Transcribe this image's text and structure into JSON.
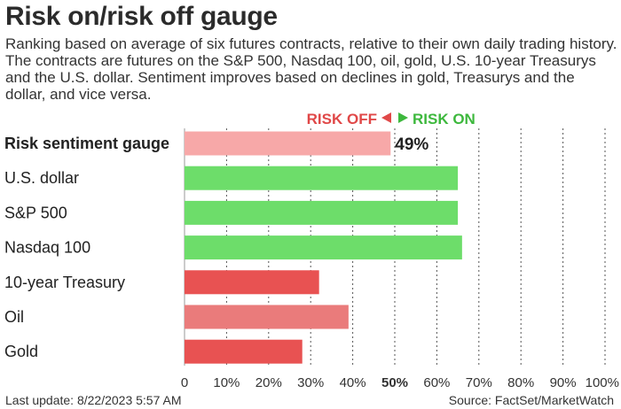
{
  "title": "Risk on/risk off gauge",
  "subtitle": "Ranking based on average of six futures contracts, relative to their own daily trading history. The contracts are futures on the S&P 500, Nasdaq 100, oil, gold, U.S. 10-year Treasurys and the U.S. dollar. Sentiment improves based on declines in gold, Treasurys and the dollar, and vice versa.",
  "footer": {
    "last_update": "Last update: 8/22/2023 5:57 AM",
    "source": "Source: FactSet/MarketWatch"
  },
  "chart_data": {
    "type": "bar",
    "orientation": "horizontal",
    "indicator": {
      "risk_off": "RISK OFF",
      "risk_on": "RISK ON"
    },
    "categories": [
      "Risk sentiment gauge",
      "U.S. dollar",
      "S&P 500",
      "Nasdaq 100",
      "10-year Treasury",
      "Oil",
      "Gold"
    ],
    "values": [
      49,
      65,
      65,
      66,
      32,
      39,
      28
    ],
    "colors": [
      "#f7a8a8",
      "#6ddd6a",
      "#6ddd6a",
      "#6ddd6a",
      "#e85252",
      "#ea7b7b",
      "#e85252"
    ],
    "value_labels": [
      "49%",
      "",
      "",
      "",
      "",
      "",
      ""
    ],
    "xlim": [
      0,
      100
    ],
    "xticks": [
      "0",
      "10%",
      "20%",
      "30%",
      "40%",
      "50%",
      "60%",
      "70%",
      "80%",
      "90%",
      "100%"
    ],
    "grid": "vertical dashed",
    "colors_key": {
      "risk_off_text": "#e04848",
      "risk_on_text": "#3db83d"
    }
  }
}
